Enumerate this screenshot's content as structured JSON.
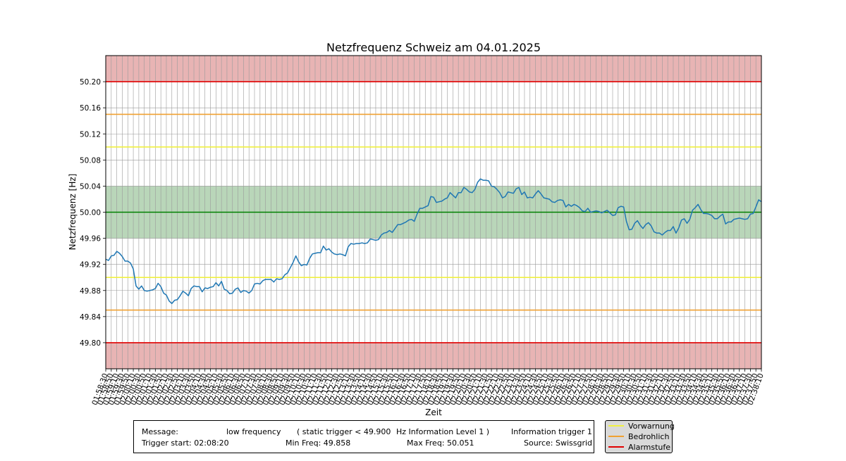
{
  "chart_data": {
    "type": "line",
    "title": "Netzfrequenz Schweiz am 04.01.2025",
    "xlabel": "Zeit",
    "ylabel": "Netzfrequenz [Hz]",
    "ylim": [
      49.76,
      50.24
    ],
    "yticks": [
      "49.80",
      "49.84",
      "49.88",
      "49.92",
      "49.96",
      "50.00",
      "50.04",
      "50.08",
      "50.12",
      "50.16",
      "50.20"
    ],
    "xticks": [
      "01:58:30",
      "01:58:50",
      "01:59:10",
      "01:59:30",
      "01:59:50",
      "02:00:10",
      "02:00:30",
      "02:00:50",
      "02:01:10",
      "02:01:30",
      "02:01:50",
      "02:02:10",
      "02:02:30",
      "02:02:50",
      "02:03:10",
      "02:03:30",
      "02:03:50",
      "02:04:10",
      "02:04:30",
      "02:04:50",
      "02:05:10",
      "02:05:30",
      "02:05:50",
      "02:06:10",
      "02:06:30",
      "02:06:50",
      "02:07:10",
      "02:07:30",
      "02:07:50",
      "02:08:10",
      "02:08:30",
      "02:08:50",
      "02:09:10",
      "02:09:30",
      "02:09:50",
      "02:10:10",
      "02:10:30",
      "02:10:50",
      "02:11:10",
      "02:11:30",
      "02:11:50",
      "02:12:10",
      "02:12:30",
      "02:12:50",
      "02:13:10",
      "02:13:30",
      "02:13:50",
      "02:14:10",
      "02:14:30",
      "02:14:50",
      "02:15:10",
      "02:15:30",
      "02:15:50",
      "02:16:10",
      "02:16:30",
      "02:16:50",
      "02:17:10",
      "02:17:30",
      "02:17:50",
      "02:18:10",
      "02:18:30",
      "02:18:50",
      "02:19:10",
      "02:19:30",
      "02:19:50",
      "02:20:10",
      "02:20:30",
      "02:20:50",
      "02:21:10",
      "02:21:30",
      "02:21:50",
      "02:22:10",
      "02:22:30",
      "02:22:50",
      "02:23:10",
      "02:23:30",
      "02:23:50",
      "02:24:10",
      "02:24:30",
      "02:24:50",
      "02:25:10",
      "02:25:30",
      "02:25:50",
      "02:26:10",
      "02:26:30",
      "02:26:50",
      "02:27:10",
      "02:27:30",
      "02:27:50",
      "02:28:10",
      "02:28:30",
      "02:28:50",
      "02:29:10",
      "02:29:30",
      "02:29:50",
      "02:30:10",
      "02:30:30",
      "02:30:50",
      "02:31:10",
      "02:31:30",
      "02:31:50",
      "02:32:10",
      "02:32:30",
      "02:32:50",
      "02:33:10",
      "02:33:30",
      "02:33:50",
      "02:34:10",
      "02:34:30",
      "02:34:50",
      "02:35:10",
      "02:35:30",
      "02:35:50",
      "02:36:10",
      "02:36:30",
      "02:36:50",
      "02:37:10",
      "02:37:30",
      "02:37:50",
      "02:38:10"
    ],
    "grid": true,
    "bands": [
      {
        "from": 50.2,
        "to": 50.24,
        "color": "#e8b4b4"
      },
      {
        "from": 49.76,
        "to": 49.8,
        "color": "#e8b4b4"
      },
      {
        "from": 49.96,
        "to": 50.04,
        "color": "#b9d6b9"
      }
    ],
    "hlines": [
      {
        "y": 50.2,
        "color": "#e00000"
      },
      {
        "y": 49.8,
        "color": "#e00000"
      },
      {
        "y": 50.15,
        "color": "#f0a030"
      },
      {
        "y": 49.85,
        "color": "#f0a030"
      },
      {
        "y": 50.1,
        "color": "#f0f040"
      },
      {
        "y": 49.9,
        "color": "#f0f040"
      },
      {
        "y": 50.0,
        "color": "#008000"
      }
    ],
    "series": [
      {
        "color": "#1f77b4",
        "values": [
          49.928,
          49.926,
          49.933,
          49.934,
          49.94,
          49.937,
          49.932,
          49.925,
          49.925,
          49.922,
          49.913,
          49.887,
          49.882,
          49.887,
          49.88,
          49.879,
          49.88,
          49.881,
          49.883,
          49.891,
          49.886,
          49.876,
          49.873,
          49.864,
          49.86,
          49.865,
          49.866,
          49.872,
          49.879,
          49.876,
          49.872,
          49.883,
          49.887,
          49.886,
          49.886,
          49.878,
          49.884,
          49.883,
          49.885,
          49.886,
          49.892,
          49.887,
          49.894,
          49.882,
          49.88,
          49.875,
          49.876,
          49.882,
          49.884,
          49.877,
          49.88,
          49.879,
          49.876,
          49.88,
          49.89,
          49.891,
          49.89,
          49.895,
          49.897,
          49.897,
          49.897,
          49.893,
          49.898,
          49.897,
          49.898,
          49.904,
          49.907,
          49.915,
          49.923,
          49.933,
          49.924,
          49.918,
          49.92,
          49.919,
          49.929,
          49.936,
          49.937,
          49.938,
          49.938,
          49.948,
          49.942,
          49.944,
          49.939,
          49.936,
          49.935,
          49.936,
          49.935,
          49.933,
          49.947,
          49.952,
          49.951,
          49.952,
          49.952,
          49.953,
          49.952,
          49.953,
          49.959,
          49.958,
          49.957,
          49.958,
          49.965,
          49.968,
          49.969,
          49.972,
          49.969,
          49.975,
          49.981,
          49.981,
          49.983,
          49.985,
          49.988,
          49.989,
          49.986,
          49.997,
          50.006,
          50.006,
          50.008,
          50.01,
          50.024,
          50.023,
          50.015,
          50.016,
          50.017,
          50.02,
          50.022,
          50.03,
          50.026,
          50.022,
          50.03,
          50.03,
          50.038,
          50.035,
          50.031,
          50.03,
          50.035,
          50.046,
          50.051,
          50.049,
          50.049,
          50.048,
          50.04,
          50.039,
          50.035,
          50.03,
          50.022,
          50.024,
          50.031,
          50.03,
          50.029,
          50.036,
          50.038,
          50.027,
          50.031,
          50.022,
          50.023,
          50.022,
          50.028,
          50.033,
          50.028,
          50.022,
          50.021,
          50.02,
          50.016,
          50.015,
          50.018,
          50.019,
          50.018,
          50.008,
          50.012,
          50.009,
          50.012,
          50.01,
          50.007,
          50.002,
          50.001,
          50.006,
          50.0,
          50.001,
          50.002,
          50.001,
          49.999,
          50.001,
          50.003,
          49.999,
          49.995,
          49.996,
          50.007,
          50.009,
          50.008,
          49.986,
          49.973,
          49.974,
          49.983,
          49.987,
          49.98,
          49.975,
          49.981,
          49.984,
          49.979,
          49.97,
          49.968,
          49.968,
          49.965,
          49.969,
          49.972,
          49.972,
          49.978,
          49.968,
          49.976,
          49.988,
          49.99,
          49.983,
          49.989,
          50.003,
          50.007,
          50.012,
          50.004,
          49.998,
          49.998,
          49.997,
          49.995,
          49.99,
          49.99,
          49.994,
          49.997,
          49.982,
          49.985,
          49.985,
          49.989,
          49.99,
          49.991,
          49.99,
          49.989,
          49.99,
          49.997,
          49.998,
          50.008,
          50.019,
          50.016
        ]
      }
    ]
  },
  "info": {
    "message_label": "Message:",
    "message_value": "low frequency",
    "trigger_desc": "( static trigger < 49.900",
    "level_desc": "Hz Information Level 1 )",
    "info_trigger": "Information trigger 1",
    "trigger_start": "Trigger start: 02:08:20",
    "min_freq": "Min Freq: 49.858",
    "max_freq": "Max Freq: 50.051",
    "source": "Source: Swissgrid"
  },
  "legend": [
    {
      "label": "Vorwarnung",
      "color": "#f0f040"
    },
    {
      "label": "Bedrohlich",
      "color": "#f0a030"
    },
    {
      "label": "Alarmstufe",
      "color": "#e00000"
    }
  ]
}
